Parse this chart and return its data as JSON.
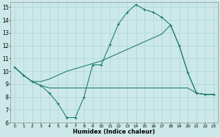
{
  "xlabel": "Humidex (Indice chaleur)",
  "bg_color": "#cce8e8",
  "line_color": "#1a7a6e",
  "grid_color": "#aad4d4",
  "xlim": [
    -0.5,
    23.5
  ],
  "ylim": [
    6,
    15.4
  ],
  "xticks": [
    0,
    1,
    2,
    3,
    4,
    5,
    6,
    7,
    8,
    9,
    10,
    11,
    12,
    13,
    14,
    15,
    16,
    17,
    18,
    19,
    20,
    21,
    22,
    23
  ],
  "yticks": [
    6,
    7,
    8,
    9,
    10,
    11,
    12,
    13,
    14,
    15
  ],
  "line1_x": [
    0,
    1,
    2,
    3,
    4,
    5,
    6,
    7,
    8,
    9,
    10,
    11,
    12,
    13,
    14,
    15,
    16,
    17,
    18,
    19,
    20,
    21,
    22,
    23
  ],
  "line1_y": [
    10.3,
    9.7,
    9.2,
    8.9,
    8.3,
    7.5,
    6.4,
    6.4,
    8.0,
    10.5,
    10.5,
    12.1,
    13.7,
    14.6,
    15.2,
    14.8,
    14.6,
    14.2,
    13.6,
    12.0,
    9.9,
    8.3,
    8.2,
    8.2
  ],
  "line2_x": [
    0,
    1,
    2,
    3,
    4,
    5,
    6,
    7,
    8,
    9,
    10,
    11,
    12,
    13,
    14,
    15,
    16,
    17,
    18,
    19,
    20,
    21,
    22,
    23
  ],
  "line2_y": [
    10.3,
    9.7,
    9.2,
    8.9,
    8.7,
    8.7,
    8.7,
    8.7,
    8.7,
    8.7,
    8.7,
    8.7,
    8.7,
    8.7,
    8.7,
    8.7,
    8.7,
    8.7,
    8.7,
    8.7,
    8.7,
    8.3,
    8.2,
    8.2
  ],
  "line3_x": [
    0,
    1,
    2,
    3,
    4,
    5,
    6,
    7,
    8,
    9,
    10,
    11,
    12,
    13,
    14,
    15,
    16,
    17,
    18,
    19,
    20,
    21,
    22,
    23
  ],
  "line3_y": [
    10.3,
    9.7,
    9.2,
    9.2,
    9.4,
    9.7,
    10.0,
    10.2,
    10.4,
    10.6,
    10.8,
    11.1,
    11.4,
    11.7,
    12.0,
    12.3,
    12.6,
    12.9,
    13.6,
    12.0,
    9.9,
    8.3,
    8.2,
    8.2
  ]
}
